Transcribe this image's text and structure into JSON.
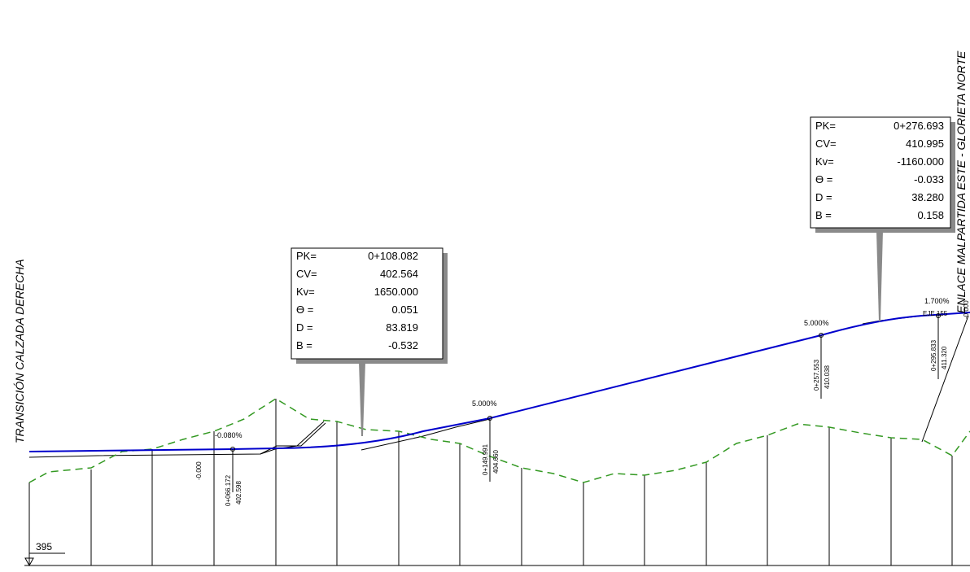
{
  "title_left": "TRANSICIÓN CALZADA DERECHA",
  "title_right": "ENLACE MALPARTIDA ESTE - GLORIETA NORTE",
  "datum_label": "395",
  "vertical_curves": [
    {
      "labels": [
        "PK=",
        "CV=",
        "Kv=",
        "Ɵ =",
        "D =",
        "B ="
      ],
      "values": [
        "0+108.082",
        "402.564",
        "1650.000",
        "0.051",
        "83.819",
        "-0.532"
      ]
    },
    {
      "labels": [
        "PK=",
        "CV=",
        "Kv=",
        "Ɵ =",
        "D =",
        "B ="
      ],
      "values": [
        "0+276.693",
        "410.995",
        "-1160.000",
        "-0.033",
        "38.280",
        "0.158"
      ]
    }
  ],
  "grade_labels": [
    "-0.080%",
    "5.000%",
    "5.000%",
    "1.700%",
    "-0.000"
  ],
  "station_labels": [
    {
      "pk": "0+066.172",
      "elev": "402.598"
    },
    {
      "pk": "0+149.991",
      "elev": "404.660"
    },
    {
      "pk": "0+257.553",
      "elev": "410.038"
    },
    {
      "pk": "0+295.833",
      "elev": "411.320"
    }
  ],
  "misc_labels": [
    "-0.000",
    "EJE 155",
    "-0.000"
  ],
  "colors": {
    "grade_line": "#0000cc",
    "terrain": "#339922",
    "lines": "#000000"
  }
}
